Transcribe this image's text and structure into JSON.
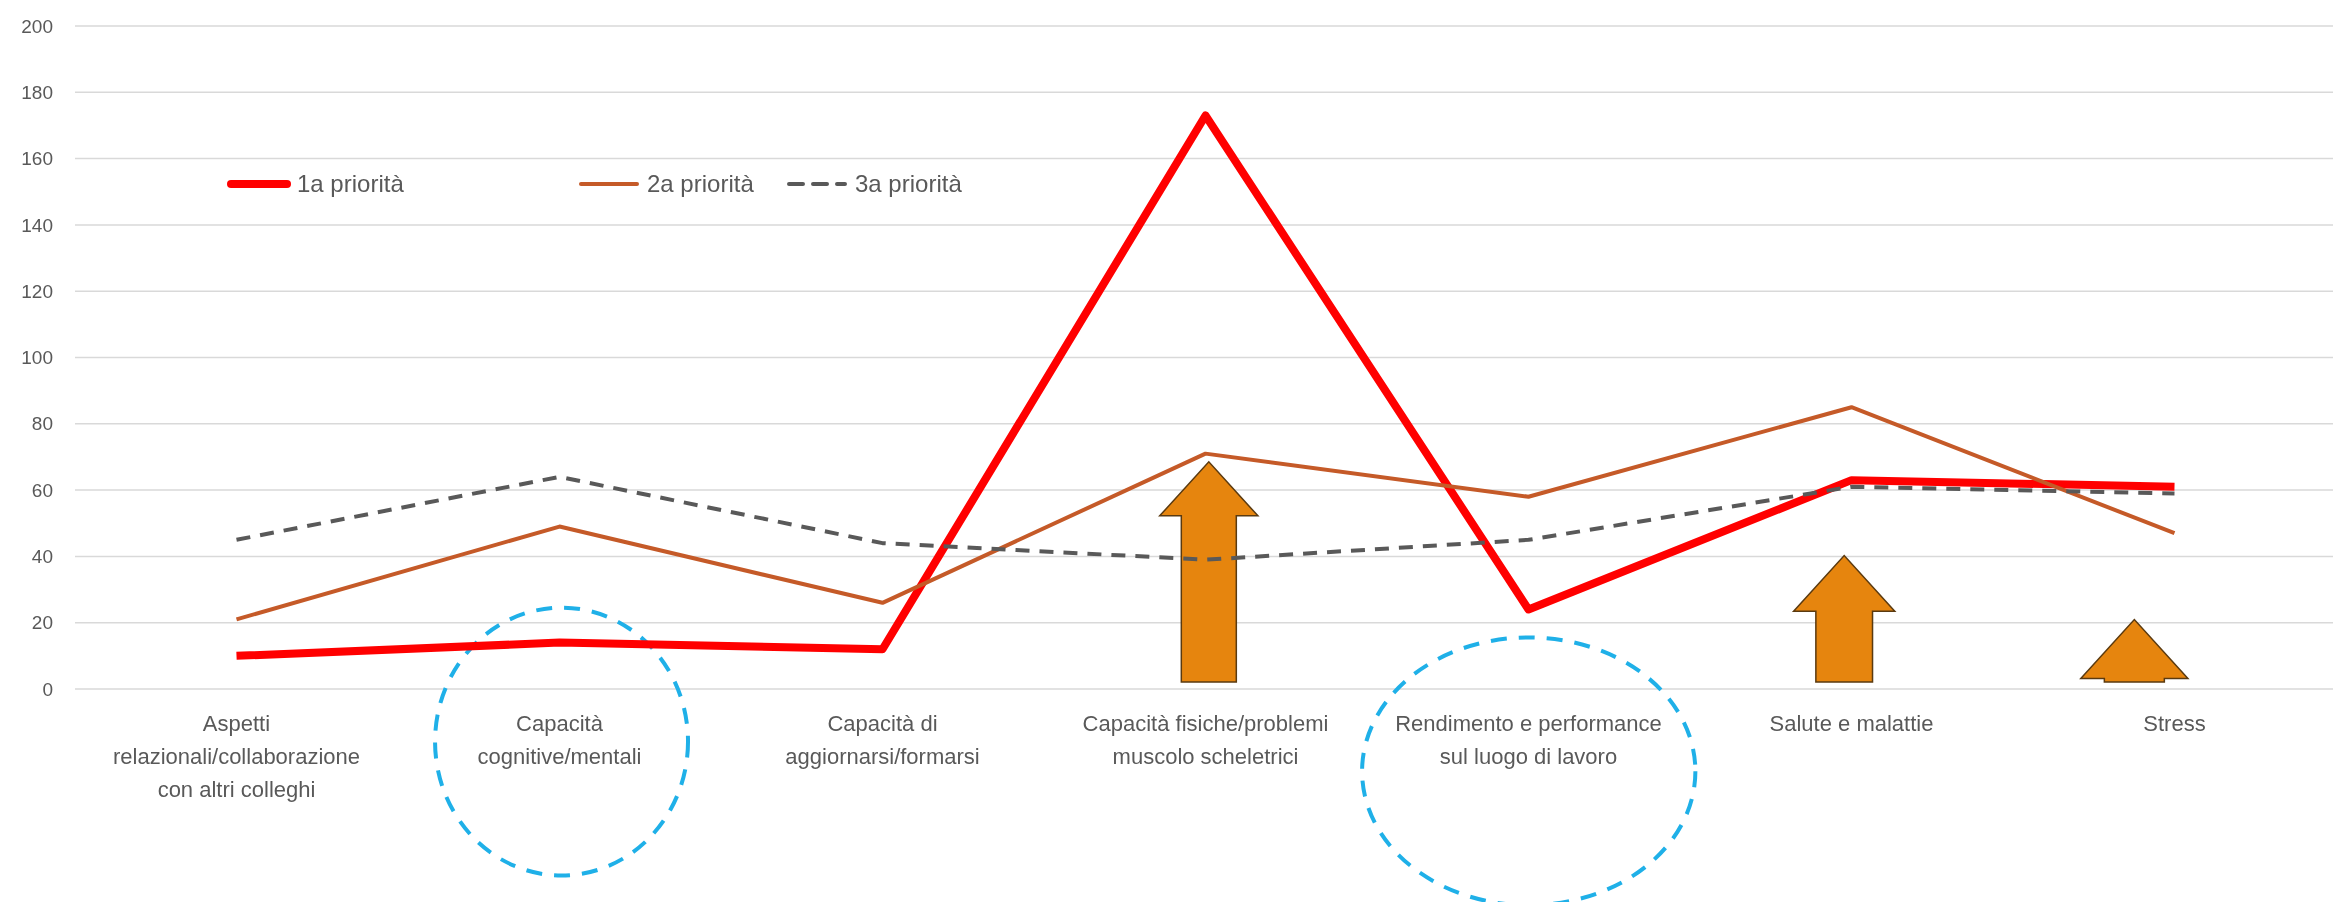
{
  "chart_data": {
    "type": "line",
    "categories": [
      "Aspetti relazionali/collaborazione con altri colleghi",
      "Capacità cognitive/mentali",
      "Capacità di aggiornarsi/formarsi",
      "Capacità fisiche/problemi muscolo scheletrici",
      "Rendimento e performance sul luogo di lavoro",
      "Salute e malattie",
      "Stress"
    ],
    "series": [
      {
        "name": "1a priorità",
        "color": "#ff0000",
        "values": [
          10,
          14,
          12,
          173,
          24,
          63,
          61
        ]
      },
      {
        "name": "2a priorità",
        "color": "#c55a28",
        "values": [
          21,
          49,
          26,
          71,
          58,
          85,
          47
        ]
      },
      {
        "name": "3a priorità",
        "color": "#595959",
        "line_style": "dashed",
        "values": [
          45,
          64,
          44,
          39,
          45,
          61,
          59
        ]
      }
    ],
    "ylim": [
      0,
      200
    ],
    "yticks": [
      0,
      20,
      40,
      60,
      80,
      100,
      120,
      140,
      160,
      180,
      200
    ],
    "grid": "y",
    "legend": "top left",
    "marker": "none"
  }
}
